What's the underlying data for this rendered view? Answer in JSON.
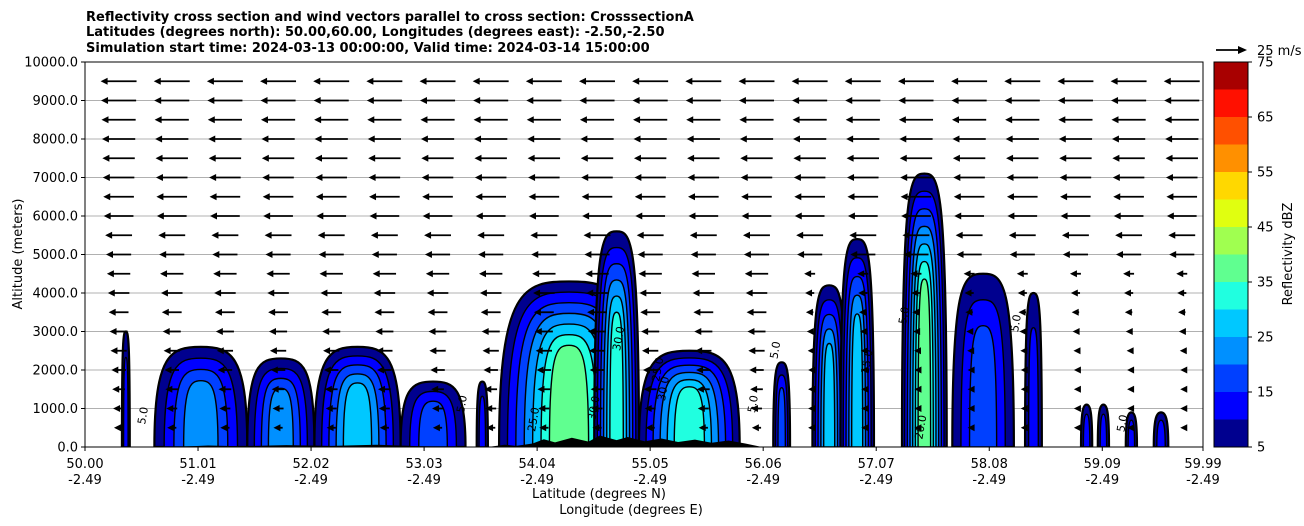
{
  "chart_data": {
    "type": "contourf",
    "title_lines": [
      "Reflectivity cross section and wind vectors parallel to cross section: CrosssectionA",
      "Latitudes (degrees north): 50.00,60.00, Longitudes (degrees east): -2.50,-2.50",
      "Simulation start time: 2024-03-13 00:00:00, Valid time: 2024-03-14 15:00:00"
    ],
    "xlabel_lat": "Latitude (degrees N)",
    "xlabel_lon": "Longitude (degrees E)",
    "ylabel": "Altitude (meters)",
    "xlim": [
      50.0,
      59.99
    ],
    "ylim": [
      0,
      10000
    ],
    "x_ticks": [
      {
        "lat": "50.00",
        "lon": "-2.49",
        "value": 50.0
      },
      {
        "lat": "51.01",
        "lon": "-2.49",
        "value": 51.01
      },
      {
        "lat": "52.02",
        "lon": "-2.49",
        "value": 52.02
      },
      {
        "lat": "53.03",
        "lon": "-2.49",
        "value": 53.03
      },
      {
        "lat": "54.04",
        "lon": "-2.49",
        "value": 54.04
      },
      {
        "lat": "55.05",
        "lon": "-2.49",
        "value": 55.05
      },
      {
        "lat": "56.06",
        "lon": "-2.49",
        "value": 56.06
      },
      {
        "lat": "57.07",
        "lon": "-2.49",
        "value": 57.07
      },
      {
        "lat": "58.08",
        "lon": "-2.49",
        "value": 58.08
      },
      {
        "lat": "59.09",
        "lon": "-2.49",
        "value": 59.09
      },
      {
        "lat": "59.99",
        "lon": "-2.49",
        "value": 59.99
      }
    ],
    "y_ticks": [
      "0.0",
      "1000.0",
      "2000.0",
      "3000.0",
      "4000.0",
      "5000.0",
      "6000.0",
      "7000.0",
      "8000.0",
      "9000.0",
      "10000.0"
    ],
    "y_tick_values": [
      0,
      1000,
      2000,
      3000,
      4000,
      5000,
      6000,
      7000,
      8000,
      9000,
      10000
    ],
    "grid_y": true,
    "colorbar": {
      "label": "Reflectivity dBZ",
      "levels": [
        5,
        10,
        15,
        20,
        25,
        30,
        35,
        40,
        45,
        50,
        55,
        60,
        65,
        70,
        75
      ],
      "tick_labels": [
        "5",
        "15",
        "25",
        "35",
        "45",
        "55",
        "65",
        "75"
      ],
      "colors": [
        "#00008f",
        "#0000ff",
        "#0040ff",
        "#0090ff",
        "#00c8ff",
        "#20ffe0",
        "#60ff90",
        "#a0ff50",
        "#e0ff10",
        "#ffd800",
        "#ff9000",
        "#ff5000",
        "#ff1000",
        "#a80000"
      ]
    },
    "wind_key": {
      "label": "25 m/s",
      "speed": 25
    },
    "cells": [
      {
        "x": [
          50.33,
          50.4
        ],
        "top": 3000,
        "max_dbz": 10
      },
      {
        "x": [
          50.62,
          51.45
        ],
        "top": 2600,
        "max_dbz": 20
      },
      {
        "x": [
          51.45,
          52.05
        ],
        "top": 2300,
        "max_dbz": 20
      },
      {
        "x": [
          52.05,
          52.82
        ],
        "top": 2600,
        "max_dbz": 25
      },
      {
        "x": [
          52.82,
          53.4
        ],
        "top": 1700,
        "max_dbz": 15
      },
      {
        "x": [
          53.5,
          53.6
        ],
        "top": 1700,
        "max_dbz": 10
      },
      {
        "x": [
          53.7,
          54.95
        ],
        "top": 4300,
        "max_dbz": 35
      },
      {
        "x": [
          54.55,
          54.95
        ],
        "top": 5600,
        "max_dbz": 30
      },
      {
        "x": [
          54.95,
          55.85
        ],
        "top": 2500,
        "max_dbz": 30
      },
      {
        "x": [
          56.15,
          56.3
        ],
        "top": 2200,
        "max_dbz": 15
      },
      {
        "x": [
          56.5,
          56.8
        ],
        "top": 4200,
        "max_dbz": 25
      },
      {
        "x": [
          56.75,
          57.05
        ],
        "top": 5400,
        "max_dbz": 25
      },
      {
        "x": [
          57.3,
          57.7
        ],
        "top": 7100,
        "max_dbz": 35
      },
      {
        "x": [
          57.75,
          58.3
        ],
        "top": 4500,
        "max_dbz": 15
      },
      {
        "x": [
          58.4,
          58.55
        ],
        "top": 4000,
        "max_dbz": 10
      },
      {
        "x": [
          58.9,
          59.0
        ],
        "top": 1100,
        "max_dbz": 10
      },
      {
        "x": [
          59.05,
          59.15
        ],
        "top": 1100,
        "max_dbz": 10
      },
      {
        "x": [
          59.3,
          59.4
        ],
        "top": 900,
        "max_dbz": 10
      },
      {
        "x": [
          59.55,
          59.68
        ],
        "top": 900,
        "max_dbz": 10
      }
    ],
    "contour_labels": [
      {
        "text": "5.0",
        "lat": 56.2,
        "alt": 2500
      },
      {
        "text": "5.0",
        "lat": 57.35,
        "alt": 3400
      },
      {
        "text": "5.0",
        "lat": 53.4,
        "alt": 1100
      },
      {
        "text": "5.0",
        "lat": 50.55,
        "alt": 800
      },
      {
        "text": "5.0",
        "lat": 56.0,
        "alt": 1100
      },
      {
        "text": "5.0",
        "lat": 58.35,
        "alt": 3200
      },
      {
        "text": "5.0",
        "lat": 59.3,
        "alt": 600
      },
      {
        "text": "30.0",
        "lat": 54.8,
        "alt": 2800
      },
      {
        "text": "25.0",
        "lat": 55.15,
        "alt": 2000
      },
      {
        "text": "30.0",
        "lat": 55.2,
        "alt": 1500
      },
      {
        "text": "30.0",
        "lat": 54.58,
        "alt": 1000
      },
      {
        "text": "25.0",
        "lat": 54.04,
        "alt": 700
      },
      {
        "text": "15.0",
        "lat": 57.02,
        "alt": 2200
      },
      {
        "text": "20.0",
        "lat": 57.5,
        "alt": 500
      }
    ]
  }
}
